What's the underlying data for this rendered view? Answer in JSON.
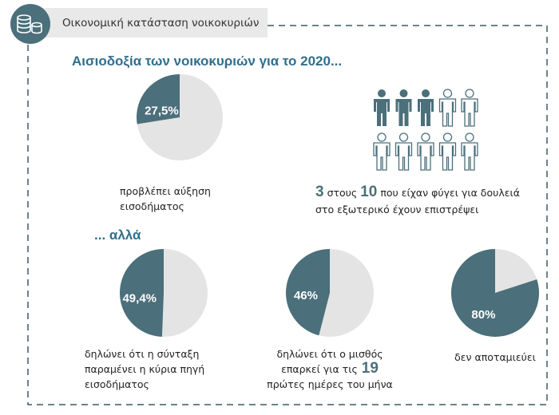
{
  "header": {
    "title": "Οικονομική κατάσταση νοικοκυριών"
  },
  "headline": "Αισιοδοξία των νοικοκυριών για το 2020...",
  "subheadline": "... αλλά",
  "chart_data": [
    {
      "type": "pie",
      "values": [
        27.5
      ],
      "value_labels": [
        "27,5%"
      ],
      "color": "#4b6f7b",
      "rest_color": "#e4e4e4",
      "caption": [
        [
          "προβλέπει αύξηση"
        ],
        [
          "εισοδήματος"
        ]
      ]
    },
    {
      "type": "pie",
      "values": [
        49.4
      ],
      "value_labels": [
        "49,4%"
      ],
      "color": "#4b6f7b",
      "rest_color": "#e4e4e4",
      "caption": [
        [
          "δηλώνει ότι η σύνταξη"
        ],
        [
          "παραμένει η κύρια πηγή"
        ],
        [
          "εισοδήματος"
        ]
      ]
    },
    {
      "type": "pie",
      "values": [
        46
      ],
      "value_labels": [
        "46%"
      ],
      "color": "#4b6f7b",
      "rest_color": "#e4e4e4",
      "caption": [
        [
          "δηλώνει ότι ο μισθός"
        ],
        [
          "επαρκεί για τις",
          19
        ],
        [
          "πρώτες ημέρες του μήνα"
        ]
      ]
    },
    {
      "type": "pie",
      "values": [
        80
      ],
      "value_labels": [
        "80%"
      ],
      "color": "#4b6f7b",
      "rest_color": "#e4e4e4",
      "caption": [
        [
          "δεν αποταμιεύει"
        ]
      ]
    }
  ],
  "pictogram": {
    "highlighted": 3,
    "total": 10,
    "color": "#4b6f7b",
    "word_between": "στους",
    "line1_rest": "που είχαν φύγει για δουλειά",
    "line2": "στο εξωτερικό έχουν επιστρέψει"
  }
}
